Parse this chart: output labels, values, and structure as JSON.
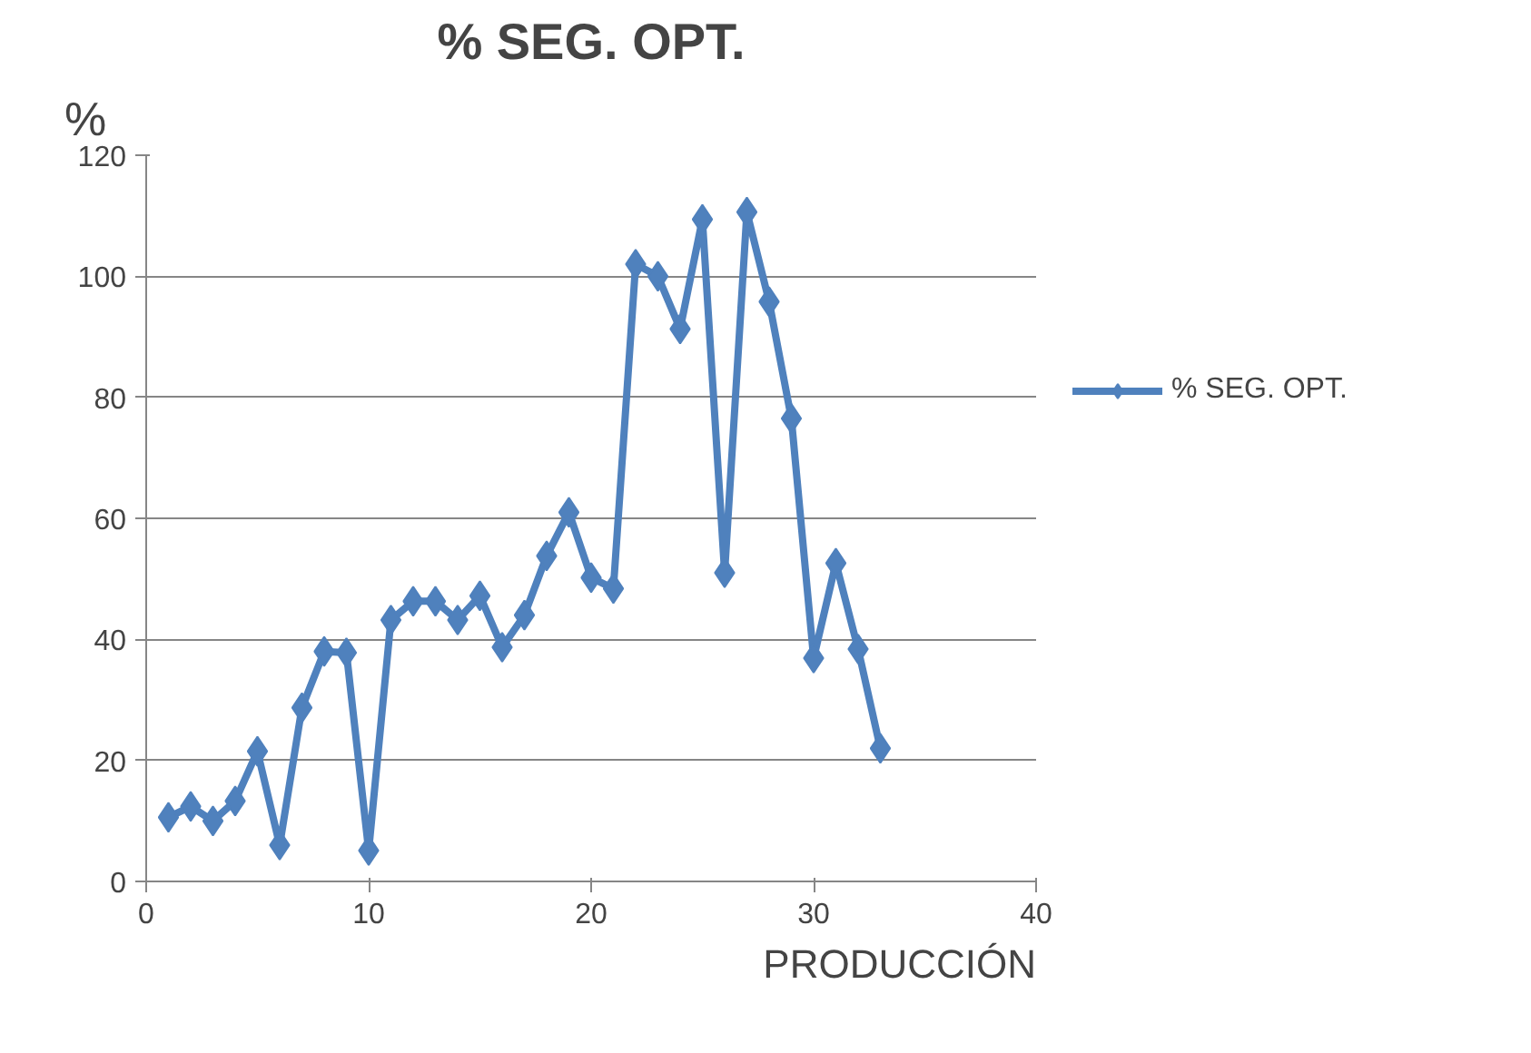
{
  "chart_data": {
    "type": "line",
    "title": "% SEG. OPT.",
    "ylabel": "%",
    "xlabel": "PRODUCCIÓN",
    "x": [
      1,
      2,
      3,
      4,
      5,
      6,
      7,
      8,
      9,
      10,
      11,
      12,
      13,
      14,
      15,
      16,
      17,
      18,
      19,
      20,
      21,
      22,
      23,
      24,
      25,
      26,
      27,
      28,
      29,
      30,
      31,
      32,
      33
    ],
    "series": [
      {
        "name": "% SEG. OPT.",
        "color": "#4f81bd",
        "values": [
          10.6,
          12.4,
          10,
          13.3,
          21.5,
          6,
          28.7,
          38,
          37.8,
          5.1,
          43.2,
          46.3,
          46.3,
          43.2,
          47.2,
          38.7,
          44,
          53.8,
          61,
          50.2,
          48.4,
          102,
          100,
          91.3,
          109.4,
          51,
          110.6,
          95.8,
          76.5,
          36.9,
          52.6,
          38.4,
          22
        ]
      }
    ],
    "xlim": [
      0,
      40
    ],
    "xticks": [
      0,
      10,
      20,
      30,
      40
    ],
    "ylim": [
      0,
      120
    ],
    "yticks": [
      0,
      20,
      40,
      60,
      80,
      100,
      120
    ],
    "grid": "y",
    "legend": "right",
    "marker": "diamond",
    "line_style": "solid"
  }
}
